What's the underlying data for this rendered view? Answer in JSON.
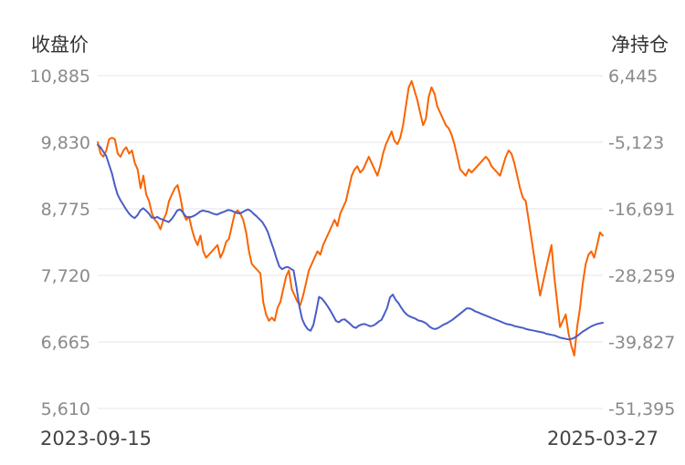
{
  "chart_data": {
    "type": "line",
    "left_axis_title": "收盘价",
    "right_axis_title": "净持仓",
    "left_ticks": [
      "10,885",
      "9,830",
      "8,775",
      "7,720",
      "6,665",
      "5,610"
    ],
    "right_ticks": [
      "6,445",
      "-5,123",
      "-16,691",
      "-28,259",
      "-39,827",
      "-51,395"
    ],
    "left_range": [
      5610,
      10885
    ],
    "right_range": [
      -51395,
      6445
    ],
    "x_start_label": "2023-09-15",
    "x_end_label": "2025-03-27",
    "grid": true,
    "series": [
      {
        "color": "#fa6400",
        "axis": "left",
        "values": [
          9830,
          9650,
          9600,
          9700,
          9880,
          9900,
          9880,
          9650,
          9600,
          9700,
          9750,
          9650,
          9700,
          9500,
          9400,
          9100,
          9300,
          9000,
          8900,
          8700,
          8600,
          8550,
          8450,
          8600,
          8700,
          8900,
          9000,
          9100,
          9150,
          8950,
          8700,
          8600,
          8650,
          8450,
          8300,
          8200,
          8350,
          8100,
          8000,
          8050,
          8100,
          8150,
          8200,
          8000,
          8100,
          8250,
          8300,
          8500,
          8700,
          8750,
          8700,
          8600,
          8400,
          8100,
          7900,
          7850,
          7800,
          7750,
          7300,
          7100,
          7000,
          7050,
          7000,
          7200,
          7300,
          7500,
          7700,
          7800,
          7500,
          7400,
          7300,
          7250,
          7400,
          7600,
          7800,
          7900,
          8000,
          8100,
          8050,
          8200,
          8300,
          8400,
          8500,
          8600,
          8500,
          8700,
          8800,
          8900,
          9100,
          9300,
          9400,
          9450,
          9350,
          9400,
          9500,
          9600,
          9500,
          9400,
          9300,
          9450,
          9650,
          9800,
          9900,
          10000,
          9850,
          9800,
          9900,
          10100,
          10400,
          10700,
          10800,
          10650,
          10500,
          10300,
          10100,
          10200,
          10550,
          10700,
          10600,
          10400,
          10300,
          10200,
          10100,
          10050,
          9950,
          9800,
          9600,
          9400,
          9350,
          9300,
          9400,
          9350,
          9400,
          9450,
          9500,
          9550,
          9600,
          9550,
          9450,
          9400,
          9350,
          9300,
          9450,
          9600,
          9700,
          9650,
          9500,
          9300,
          9100,
          8950,
          8900,
          8600,
          8300,
          8000,
          7700,
          7400,
          7600,
          7800,
          8000,
          8200,
          7700,
          7300,
          6900,
          7000,
          7100,
          6800,
          6600,
          6450,
          6900,
          7200,
          7600,
          7900,
          8050,
          8100,
          8000,
          8200,
          8400,
          8350
        ]
      },
      {
        "color": "#4a5dc6",
        "axis": "right",
        "values": [
          -5600,
          -6000,
          -6800,
          -7500,
          -9000,
          -10500,
          -12500,
          -14200,
          -15200,
          -16000,
          -16800,
          -17500,
          -18000,
          -18300,
          -17800,
          -17000,
          -16600,
          -17000,
          -17500,
          -18200,
          -18300,
          -18100,
          -18400,
          -18600,
          -18800,
          -19000,
          -18500,
          -17800,
          -17000,
          -16800,
          -17300,
          -18000,
          -18200,
          -18100,
          -17900,
          -17600,
          -17200,
          -17000,
          -17100,
          -17200,
          -17400,
          -17600,
          -17700,
          -17500,
          -17300,
          -17100,
          -16900,
          -17000,
          -17200,
          -17400,
          -17500,
          -17300,
          -17000,
          -16800,
          -17100,
          -17600,
          -18000,
          -18500,
          -19000,
          -19800,
          -20800,
          -22300,
          -23700,
          -25300,
          -26700,
          -27200,
          -26900,
          -26800,
          -27100,
          -27400,
          -30200,
          -33500,
          -35800,
          -36900,
          -37600,
          -37900,
          -36900,
          -34600,
          -32000,
          -32300,
          -32900,
          -33600,
          -34400,
          -35300,
          -36200,
          -36400,
          -36000,
          -35900,
          -36300,
          -36700,
          -37200,
          -37400,
          -37000,
          -36800,
          -36700,
          -36900,
          -37100,
          -37000,
          -36700,
          -36300,
          -36000,
          -35000,
          -33900,
          -32100,
          -31600,
          -32500,
          -33100,
          -33900,
          -34600,
          -35100,
          -35400,
          -35600,
          -35800,
          -36100,
          -36200,
          -36400,
          -36700,
          -37200,
          -37500,
          -37600,
          -37400,
          -37100,
          -36800,
          -36600,
          -36300,
          -36000,
          -35600,
          -35200,
          -34800,
          -34400,
          -34000,
          -34000,
          -34200,
          -34500,
          -34700,
          -34900,
          -35100,
          -35300,
          -35500,
          -35700,
          -35900,
          -36100,
          -36300,
          -36500,
          -36700,
          -36800,
          -36900,
          -37100,
          -37200,
          -37300,
          -37400,
          -37600,
          -37700,
          -37800,
          -37900,
          -38000,
          -38100,
          -38200,
          -38400,
          -38500,
          -38600,
          -38700,
          -38900,
          -39100,
          -39200,
          -39300,
          -39400,
          -39300,
          -39100,
          -38800,
          -38400,
          -38000,
          -37700,
          -37400,
          -37100,
          -36900,
          -36700,
          -36600,
          -36500
        ]
      }
    ]
  }
}
